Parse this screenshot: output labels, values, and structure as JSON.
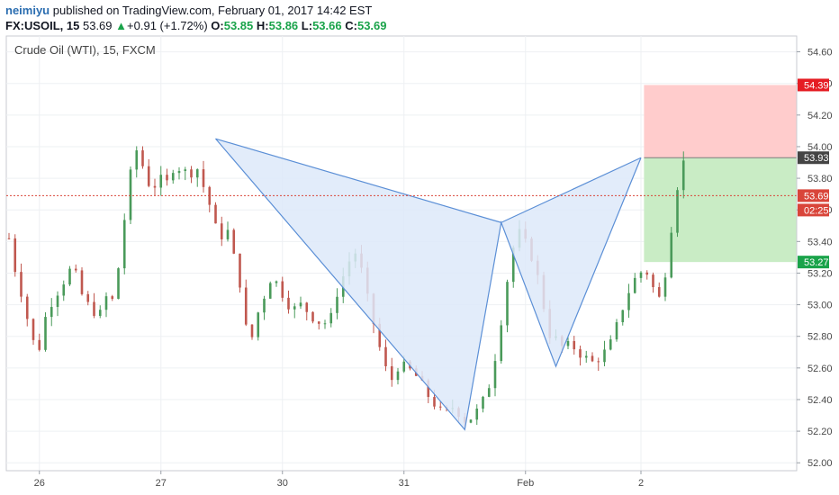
{
  "header": {
    "author": "neimiyu",
    "published_text": " published on TradingView.com, February 01, 2017 14:42 EST",
    "symbol": "FX:USOIL, 15",
    "last": "53.69",
    "change": "+0.91 (+1.72%)",
    "o_label": "O:",
    "o_value": "53.85",
    "h_label": "H:",
    "h_value": "53.86",
    "l_label": "L:",
    "l_value": "53.66",
    "c_label": "C:",
    "c_value": "53.69"
  },
  "colors": {
    "up": "#4a9a5a",
    "down": "#c0584f",
    "pattern_fill": "#dde9f9",
    "pattern_line": "#5b8fd6",
    "stop_zone": "#ffcccc",
    "target_zone": "#c9ecc5",
    "price_line": "#d9453a",
    "stop_tag": "#e51c23",
    "entry_tag": "#444444",
    "target_tag": "#1aa34a",
    "current_tag": "#d9453a"
  },
  "chart_data": {
    "type": "candlestick",
    "title": "Crude Oil (WTI), 15, FXCM",
    "y_range": [
      51.95,
      54.7
    ],
    "y_ticks": [
      "54.60",
      "54.40",
      "54.20",
      "54.00",
      "53.80",
      "53.60",
      "53.40",
      "53.20",
      "53.00",
      "52.80",
      "52.60",
      "52.40",
      "52.20",
      "52.00"
    ],
    "x_ticks": [
      {
        "label": "26",
        "bar": 5
      },
      {
        "label": "27",
        "bar": 25
      },
      {
        "label": "30",
        "bar": 45
      },
      {
        "label": "31",
        "bar": 65
      },
      {
        "label": "Feb",
        "bar": 85
      },
      {
        "label": "2",
        "bar": 104
      }
    ],
    "bar_count": 112,
    "closes": [
      53.42,
      53.18,
      53.02,
      52.78,
      52.72,
      52.95,
      53.05,
      53.12,
      53.22,
      53.18,
      53.02,
      52.98,
      52.92,
      53.05,
      53.02,
      53.38,
      53.78,
      53.98,
      53.86,
      53.72,
      53.8,
      53.76,
      53.88,
      53.86,
      53.82,
      53.88,
      53.74,
      53.6,
      53.4,
      53.5,
      53.3,
      53.1,
      52.7,
      52.92,
      53.05,
      53.18,
      53.12,
      53.02,
      52.97,
      53.0,
      52.95,
      52.9,
      52.88,
      52.92,
      53.12,
      53.22,
      53.36,
      53.22,
      53.0,
      52.82,
      52.62,
      52.52,
      52.62,
      52.6,
      52.57,
      52.5,
      52.42,
      52.36,
      52.3,
      52.36,
      52.32,
      52.26,
      52.3,
      52.36,
      52.48,
      52.7,
      53.0,
      53.32,
      53.46,
      53.38,
      53.28,
      53.08,
      52.82,
      52.78,
      52.72,
      52.75,
      52.7,
      52.66,
      52.63,
      52.68,
      52.72,
      52.85,
      53.0,
      53.12,
      53.2,
      53.22,
      53.1,
      53.02,
      53.35,
      53.72,
      53.9
    ],
    "pattern": {
      "X": {
        "bar": 34,
        "price": 54.05
      },
      "A": {
        "bar": 75,
        "price": 52.21
      },
      "B": {
        "bar": 81,
        "price": 53.52
      },
      "C": {
        "bar": 90,
        "price": 52.61
      },
      "D": {
        "bar": 104,
        "price": 53.93
      }
    },
    "position": {
      "start_bar": 104.5,
      "end_bar": 127,
      "entry": 53.93,
      "stop": 54.39,
      "target": 53.27
    },
    "price_labels": {
      "stop": "54.39",
      "entry": "53.93",
      "current": "53.69",
      "countdown": "02:25",
      "target": "53.27"
    },
    "current_price": 53.69
  }
}
